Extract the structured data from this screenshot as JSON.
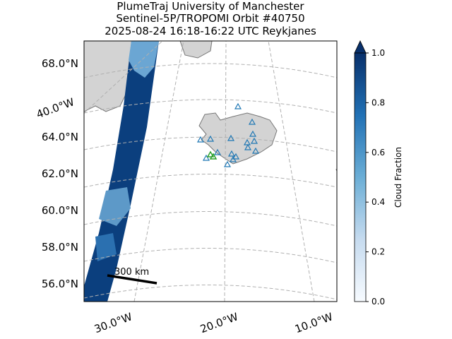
{
  "title_lines": [
    "PlumeTraj    University of Manchester",
    "Sentinel-5P/TROPOMI Orbit #40750",
    "2025-08-24   16:18-16:22 UTC   Reykjanes"
  ],
  "lat_labels": [
    "68.0°N",
    "64.0°N",
    "62.0°N",
    "60.0°N",
    "58.0°N",
    "56.0°N"
  ],
  "lon_labels": [
    "40.0°W",
    "30.0°W",
    "20.0°W",
    "10.0°W"
  ],
  "scale_bar": "300 km",
  "colorbar": {
    "label": "Cloud Fraction",
    "lim": [
      0,
      1
    ],
    "ticks": [
      {
        "value": 0,
        "label": "0.0"
      },
      0.2,
      0.4,
      0.6,
      0.8,
      {
        "value": 1,
        "label": "1.0"
      }
    ]
  }
}
